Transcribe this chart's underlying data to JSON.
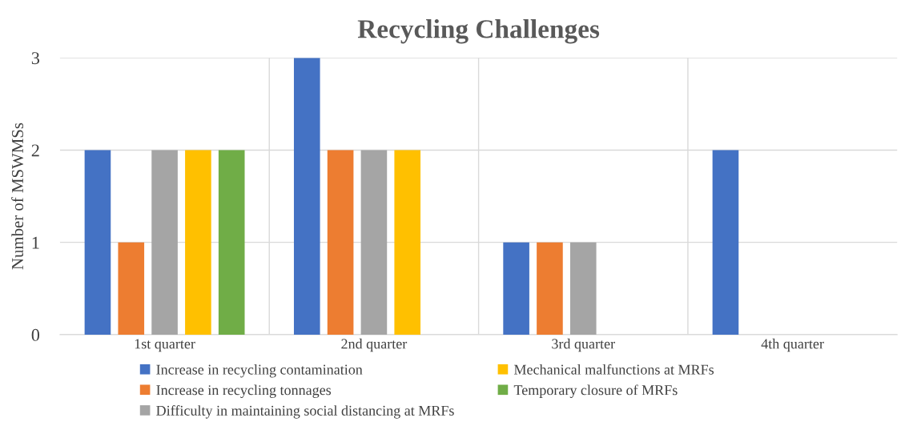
{
  "chart_data": {
    "type": "bar",
    "title": "Recycling Challenges",
    "ylabel": "Number of MSWMSs",
    "categories": [
      "1st quarter",
      "2nd quarter",
      "3rd quarter",
      "4th quarter"
    ],
    "series": [
      {
        "name": "Increase in recycling contamination",
        "color": "#4472c4",
        "values": [
          2,
          3,
          1,
          2
        ]
      },
      {
        "name": "Increase in recycling tonnages",
        "color": "#ed7d31",
        "values": [
          1,
          2,
          1,
          0
        ]
      },
      {
        "name": "Difficulty in maintaining social distancing at MRFs",
        "color": "#a5a5a5",
        "values": [
          2,
          2,
          1,
          0
        ]
      },
      {
        "name": "Mechanical malfunctions at MRFs",
        "color": "#ffc000",
        "values": [
          2,
          2,
          0,
          0
        ]
      },
      {
        "name": "Temporary closure of MRFs",
        "color": "#70ad47",
        "values": [
          2,
          0,
          0,
          0
        ]
      }
    ],
    "ylim": [
      0,
      3
    ],
    "yticks": [
      0,
      1,
      2,
      3
    ],
    "grid": true,
    "legend": "bottom"
  }
}
